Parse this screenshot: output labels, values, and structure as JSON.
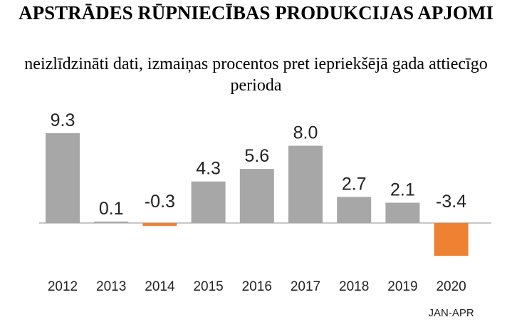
{
  "header": {
    "title": "APSTRĀDES RŪPNIECĪBAS PRODUKCIJAS APJOMI",
    "subtitle": "neizlīdzināti dati, izmaiņas procentos pret iepriekšējā gada attiecīgo perioda"
  },
  "chart_data": {
    "type": "bar",
    "categories": [
      "2012",
      "2013",
      "2014",
      "2015",
      "2016",
      "2017",
      "2018",
      "2019",
      "2020"
    ],
    "category_sublabels": [
      "",
      "",
      "",
      "",
      "",
      "",
      "",
      "",
      "JAN-APR"
    ],
    "values": [
      9.3,
      0.1,
      -0.3,
      4.3,
      5.6,
      8.0,
      2.7,
      2.1,
      -3.4
    ],
    "value_labels": [
      "9.3",
      "0.1",
      "-0.3",
      "4.3",
      "5.6",
      "8.0",
      "2.7",
      "2.1",
      "-3.4"
    ],
    "ylim": [
      -3.4,
      9.3
    ],
    "grid": false,
    "colors": {
      "positive": "#a7a7a7",
      "negative": "#ef8133",
      "baseline": "#b5b5b5"
    }
  }
}
